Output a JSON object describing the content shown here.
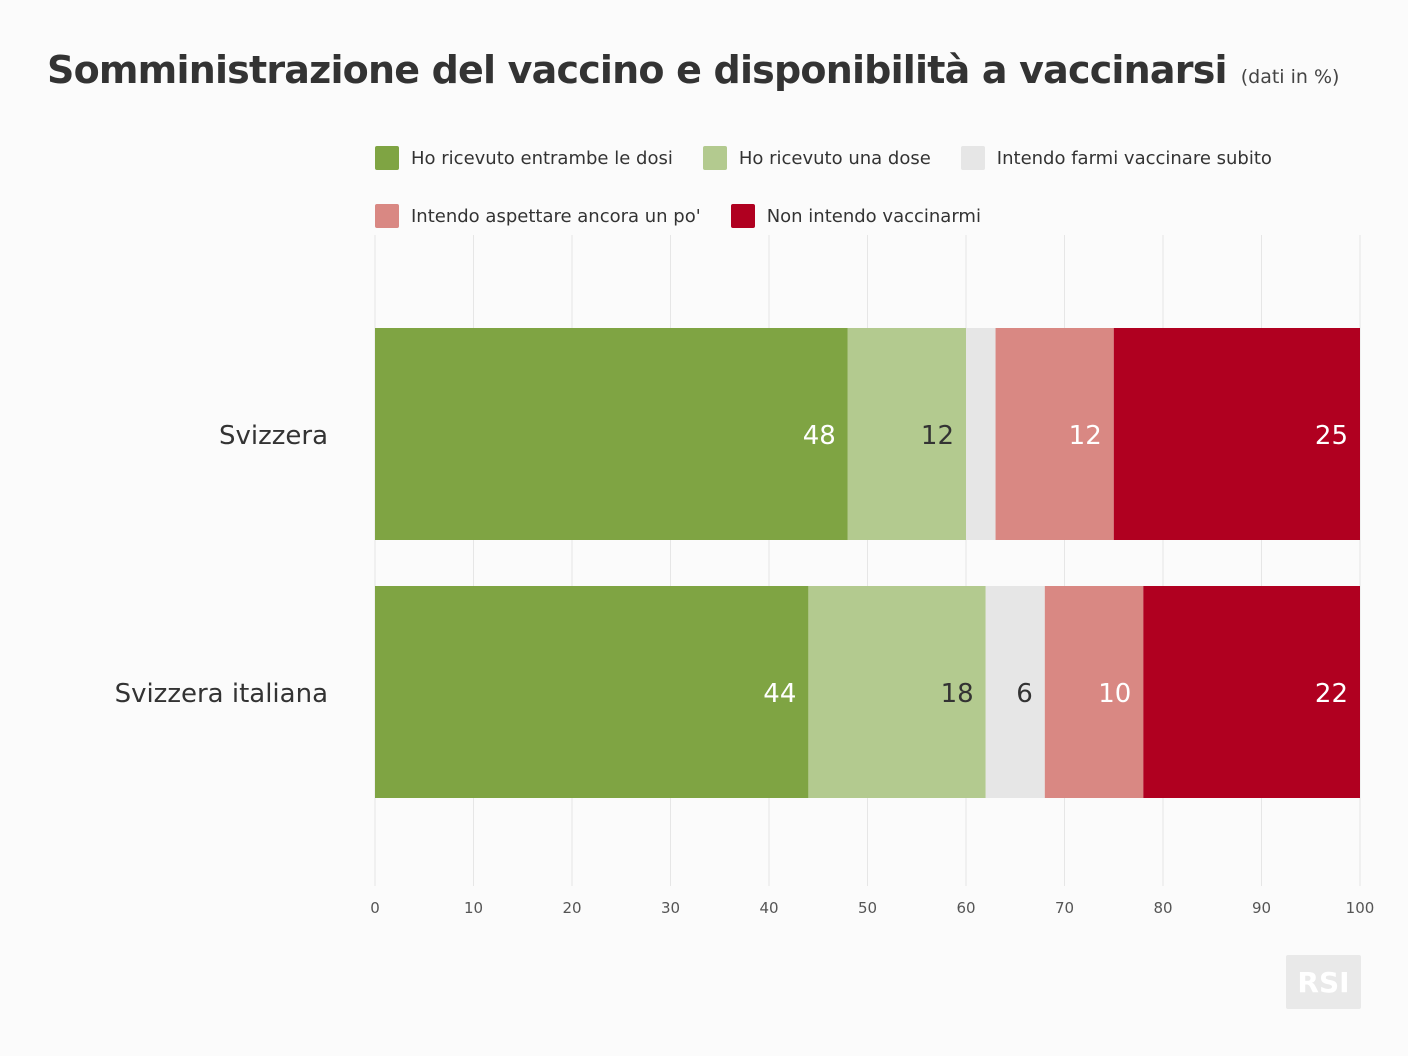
{
  "title": "Somministrazione del vaccino e disponibilità a vaccinarsi",
  "subtitle": "(dati in %)",
  "logo_text": "RSI",
  "chart_data": {
    "type": "bar",
    "orientation": "horizontal",
    "stacked": true,
    "title": "Somministrazione del vaccino e disponibilità a vaccinarsi",
    "subtitle": "(dati in %)",
    "categories": [
      "Svizzera",
      "Svizzera italiana"
    ],
    "series": [
      {
        "name": "Ho ricevuto entrambe le dosi",
        "color": "#7fa443",
        "label_color": "#ffffff",
        "values": [
          48,
          44
        ],
        "labels": [
          "48",
          "44"
        ]
      },
      {
        "name": "Ho ricevuto una dose",
        "color": "#b3ca8f",
        "label_color": "#333333",
        "values": [
          12,
          18
        ],
        "labels": [
          "12",
          "18"
        ]
      },
      {
        "name": "Intendo farmi vaccinare subito",
        "color": "#e6e6e6",
        "label_color": "#333333",
        "values": [
          3,
          6
        ],
        "labels": [
          "",
          "6"
        ]
      },
      {
        "name": "Intendo aspettare ancora un po'",
        "color": "#d98883",
        "label_color": "#ffffff",
        "values": [
          12,
          10
        ],
        "labels": [
          "12",
          "10"
        ]
      },
      {
        "name": "Non intendo vaccinarmi",
        "color": "#b00020",
        "label_color": "#ffffff",
        "values": [
          25,
          22
        ],
        "labels": [
          "25",
          "22"
        ]
      }
    ],
    "xlim": [
      0,
      100
    ],
    "xticks": [
      "0",
      "10",
      "20",
      "30",
      "40",
      "50",
      "60",
      "70",
      "80",
      "90",
      "100"
    ],
    "grid": true,
    "legend_position": "top"
  }
}
